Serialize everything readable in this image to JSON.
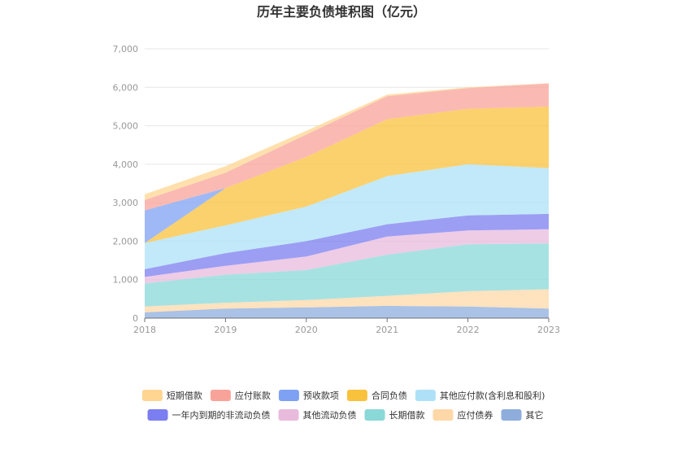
{
  "chart_data": {
    "type": "area",
    "stacked": true,
    "title": "历年主要负债堆积图（亿元）",
    "categories": [
      "2018",
      "2019",
      "2020",
      "2021",
      "2022",
      "2023"
    ],
    "ylim": [
      0,
      7000
    ],
    "yticks": [
      "0",
      "1,000",
      "2,000",
      "3,000",
      "4,000",
      "5,000",
      "6,000",
      "7,000"
    ],
    "grid": true,
    "legend_position": "bottom",
    "series": [
      {
        "name": "其它",
        "color": "#8eaddc",
        "values": [
          150,
          250,
          280,
          320,
          300,
          250
        ]
      },
      {
        "name": "应付债券",
        "color": "#ffd8a8",
        "values": [
          150,
          150,
          190,
          260,
          400,
          500
        ]
      },
      {
        "name": "长期借款",
        "color": "#8ad8d8",
        "values": [
          600,
          730,
          780,
          1070,
          1220,
          1190
        ]
      },
      {
        "name": "其他流动负债",
        "color": "#e8bbdd",
        "values": [
          170,
          230,
          350,
          470,
          360,
          370
        ]
      },
      {
        "name": "一年内到期的非流动负债",
        "color": "#7b7ef0",
        "values": [
          200,
          330,
          400,
          320,
          390,
          400
        ]
      },
      {
        "name": "其他应付款(含利息和股利)",
        "color": "#aee1f7",
        "values": [
          680,
          720,
          900,
          1250,
          1330,
          1190
        ]
      },
      {
        "name": "合同负债",
        "color": "#f9c23c",
        "values": [
          0,
          970,
          1290,
          1480,
          1440,
          1600
        ]
      },
      {
        "name": "预收款项",
        "color": "#7fa1f3",
        "values": [
          850,
          0,
          0,
          0,
          0,
          0
        ]
      },
      {
        "name": "应付账款",
        "color": "#f8a39a",
        "values": [
          270,
          400,
          580,
          600,
          540,
          600
        ]
      },
      {
        "name": "短期借款",
        "color": "#ffd591",
        "values": [
          150,
          170,
          100,
          40,
          20,
          10
        ]
      }
    ],
    "legend_order": [
      "短期借款",
      "应付账款",
      "预收款项",
      "合同负债",
      "其他应付款(含利息和股利)",
      "一年内到期的非流动负债",
      "其他流动负债",
      "长期借款",
      "应付债券",
      "其它"
    ]
  }
}
